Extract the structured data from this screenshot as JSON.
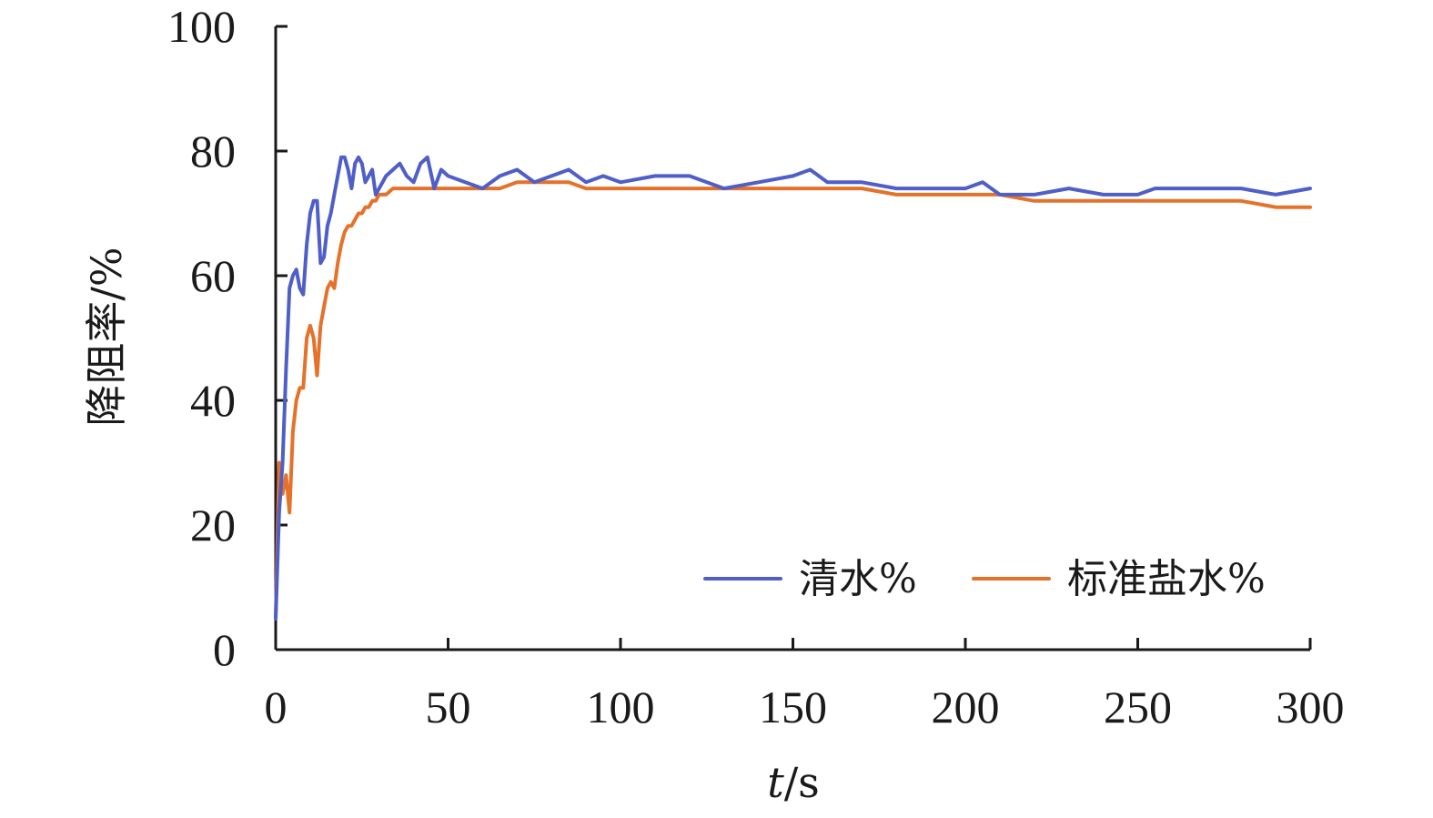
{
  "chart_data": {
    "type": "line",
    "xlabel_italic": "t",
    "xlabel_unit": "/s",
    "ylabel": "降阻率/%",
    "xlim": [
      0,
      300
    ],
    "ylim": [
      0,
      100
    ],
    "xticks": [
      0,
      50,
      100,
      150,
      200,
      250,
      300
    ],
    "yticks": [
      0,
      20,
      40,
      60,
      80,
      100
    ],
    "grid": false,
    "legend_position": "bottom-right",
    "series": [
      {
        "name": "清水%",
        "color": "#4f5fc7",
        "x": [
          0,
          1,
          2,
          3,
          4,
          5,
          6,
          7,
          8,
          9,
          10,
          11,
          12,
          13,
          14,
          15,
          16,
          17,
          18,
          19,
          20,
          21,
          22,
          23,
          24,
          25,
          26,
          27,
          28,
          29,
          30,
          32,
          34,
          36,
          38,
          40,
          42,
          44,
          46,
          48,
          50,
          55,
          60,
          65,
          70,
          75,
          80,
          85,
          90,
          95,
          100,
          110,
          120,
          125,
          130,
          140,
          150,
          155,
          160,
          170,
          180,
          190,
          200,
          205,
          210,
          220,
          230,
          240,
          250,
          255,
          260,
          270,
          280,
          290,
          300
        ],
        "values": [
          5,
          22,
          30,
          45,
          58,
          60,
          61,
          58,
          57,
          65,
          70,
          72,
          72,
          62,
          63,
          68,
          70,
          73,
          76,
          79,
          79,
          77,
          74,
          78,
          79,
          78,
          75,
          76,
          77,
          73,
          74,
          76,
          77,
          78,
          76,
          75,
          78,
          79,
          74,
          77,
          76,
          75,
          74,
          76,
          77,
          75,
          76,
          77,
          75,
          76,
          75,
          76,
          76,
          75,
          74,
          75,
          76,
          77,
          75,
          75,
          74,
          74,
          74,
          75,
          73,
          73,
          74,
          73,
          73,
          74,
          74,
          74,
          74,
          73,
          74
        ]
      },
      {
        "name": "标准盐水%",
        "color": "#e5722b",
        "x": [
          0,
          1,
          2,
          3,
          4,
          5,
          6,
          7,
          8,
          9,
          10,
          11,
          12,
          13,
          14,
          15,
          16,
          17,
          18,
          19,
          20,
          21,
          22,
          23,
          24,
          25,
          26,
          27,
          28,
          29,
          30,
          32,
          34,
          36,
          38,
          40,
          42,
          44,
          46,
          48,
          50,
          55,
          60,
          65,
          70,
          75,
          80,
          85,
          90,
          95,
          100,
          110,
          120,
          130,
          140,
          150,
          160,
          170,
          180,
          190,
          200,
          210,
          220,
          230,
          240,
          250,
          260,
          270,
          280,
          290,
          300
        ],
        "values": [
          5,
          30,
          25,
          28,
          22,
          35,
          40,
          42,
          42,
          50,
          52,
          50,
          44,
          52,
          55,
          58,
          59,
          58,
          62,
          65,
          67,
          68,
          68,
          69,
          70,
          70,
          71,
          71,
          72,
          72,
          73,
          73,
          74,
          74,
          74,
          74,
          74,
          74,
          74,
          74,
          74,
          74,
          74,
          74,
          75,
          75,
          75,
          75,
          74,
          74,
          74,
          74,
          74,
          74,
          74,
          74,
          74,
          74,
          73,
          73,
          73,
          73,
          72,
          72,
          72,
          72,
          72,
          72,
          72,
          71,
          71
        ]
      }
    ]
  }
}
